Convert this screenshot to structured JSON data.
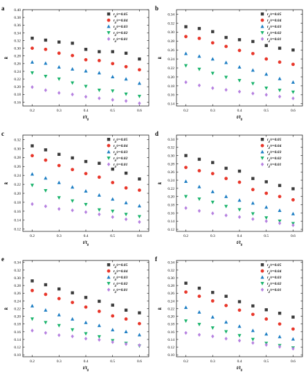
{
  "x_label_base": "t/t",
  "x_label_sub": "0",
  "y_label": "k",
  "colors": {
    "0.05": "#3a3a3a",
    "0.04": "#e8362a",
    "0.03": "#1f7fc4",
    "0.02": "#19b36b",
    "0.01": "#b681e0"
  },
  "markers": {
    "0.05": "square",
    "0.04": "circle",
    "0.03": "triangle-up",
    "0.02": "triangle-down",
    "0.01": "diamond"
  },
  "chart_data": [
    {
      "type": "scatter",
      "panel": "a",
      "x": [
        0.2,
        0.25,
        0.3,
        0.35,
        0.4,
        0.45,
        0.5,
        0.55,
        0.6
      ],
      "xticks": [
        0.2,
        0.3,
        0.4,
        0.5,
        0.6
      ],
      "ylim": [
        0.15,
        0.4
      ],
      "yticks": [
        0.16,
        0.18,
        0.2,
        0.22,
        0.24,
        0.26,
        0.28,
        0.3,
        0.32,
        0.34,
        0.36,
        0.38,
        0.4
      ],
      "xlabel": "t/t0",
      "ylabel": "k",
      "legend_position": "top-right",
      "series": [
        {
          "name": "t_d/r=0.05",
          "key": "0.05",
          "values": [
            0.326,
            0.321,
            0.316,
            0.313,
            0.297,
            0.291,
            0.291,
            0.287,
            0.272
          ]
        },
        {
          "name": "t_d/r=0.04",
          "key": "0.04",
          "values": [
            0.3,
            0.297,
            0.287,
            0.281,
            0.27,
            0.268,
            0.26,
            0.252,
            0.244
          ]
        },
        {
          "name": "t_d/r=0.03",
          "key": "0.03",
          "values": [
            0.264,
            0.261,
            0.251,
            0.246,
            0.241,
            0.236,
            0.226,
            0.22,
            0.209
          ]
        },
        {
          "name": "t_d/r=0.02",
          "key": "0.02",
          "values": [
            0.236,
            0.227,
            0.22,
            0.21,
            0.201,
            0.191,
            0.189,
            0.181,
            0.175
          ]
        },
        {
          "name": "t_d/r=0.01",
          "key": "0.01",
          "values": [
            0.199,
            0.191,
            0.184,
            0.18,
            0.174,
            0.17,
            0.166,
            0.163,
            0.157
          ]
        }
      ]
    },
    {
      "type": "scatter",
      "panel": "b",
      "x": [
        0.2,
        0.25,
        0.3,
        0.35,
        0.4,
        0.45,
        0.5,
        0.55,
        0.6
      ],
      "xticks": [
        0.2,
        0.3,
        0.4,
        0.5,
        0.6
      ],
      "ylim": [
        0.135,
        0.35
      ],
      "yticks": [
        0.14,
        0.16,
        0.18,
        0.2,
        0.22,
        0.24,
        0.26,
        0.28,
        0.3,
        0.32,
        0.34
      ],
      "xlabel": "t/t0",
      "ylabel": "k",
      "legend_position": "top-right",
      "series": [
        {
          "name": "t_d/r=0.05",
          "key": "0.05",
          "values": [
            0.312,
            0.308,
            0.301,
            0.288,
            0.283,
            0.279,
            0.27,
            0.264,
            0.26
          ]
        },
        {
          "name": "t_d/r=0.04",
          "key": "0.04",
          "values": [
            0.29,
            0.286,
            0.276,
            0.268,
            0.259,
            0.252,
            0.24,
            0.233,
            0.228
          ]
        },
        {
          "name": "t_d/r=0.03",
          "key": "0.03",
          "values": [
            0.252,
            0.246,
            0.24,
            0.232,
            0.222,
            0.215,
            0.206,
            0.196,
            0.188
          ]
        },
        {
          "name": "t_d/r=0.02",
          "key": "0.02",
          "values": [
            0.225,
            0.217,
            0.208,
            0.199,
            0.192,
            0.185,
            0.175,
            0.17,
            0.166
          ]
        },
        {
          "name": "t_d/r=0.01",
          "key": "0.01",
          "values": [
            0.188,
            0.181,
            0.175,
            0.171,
            0.167,
            0.163,
            0.16,
            0.156,
            0.152
          ]
        }
      ]
    },
    {
      "type": "scatter",
      "panel": "c",
      "x": [
        0.2,
        0.25,
        0.3,
        0.35,
        0.4,
        0.45,
        0.5,
        0.55,
        0.6
      ],
      "xticks": [
        0.2,
        0.3,
        0.4,
        0.5,
        0.6
      ],
      "ylim": [
        0.115,
        0.33
      ],
      "yticks": [
        0.12,
        0.14,
        0.16,
        0.18,
        0.2,
        0.22,
        0.24,
        0.26,
        0.28,
        0.3,
        0.32
      ],
      "xlabel": "t/t0",
      "ylabel": "k",
      "legend_position": "top-right",
      "series": [
        {
          "name": "t_d/r=0.05",
          "key": "0.05",
          "values": [
            0.306,
            0.297,
            0.287,
            0.279,
            0.271,
            0.267,
            0.254,
            0.245,
            0.232
          ]
        },
        {
          "name": "t_d/r=0.04",
          "key": "0.04",
          "values": [
            0.284,
            0.274,
            0.262,
            0.253,
            0.244,
            0.236,
            0.224,
            0.212,
            0.207
          ]
        },
        {
          "name": "t_d/r=0.03",
          "key": "0.03",
          "values": [
            0.243,
            0.234,
            0.224,
            0.214,
            0.205,
            0.196,
            0.187,
            0.179,
            0.172
          ]
        },
        {
          "name": "t_d/r=0.02",
          "key": "0.02",
          "values": [
            0.218,
            0.206,
            0.19,
            0.183,
            0.175,
            0.163,
            0.16,
            0.153,
            0.148
          ]
        },
        {
          "name": "t_d/r=0.01",
          "key": "0.01",
          "values": [
            0.176,
            0.171,
            0.165,
            0.162,
            0.158,
            0.153,
            0.147,
            0.142,
            0.136
          ]
        }
      ]
    },
    {
      "type": "scatter",
      "panel": "d",
      "x": [
        0.2,
        0.25,
        0.3,
        0.35,
        0.4,
        0.45,
        0.5,
        0.55,
        0.6
      ],
      "xticks": [
        0.2,
        0.3,
        0.4,
        0.5,
        0.6
      ],
      "ylim": [
        0.115,
        0.35
      ],
      "yticks": [
        0.12,
        0.14,
        0.16,
        0.18,
        0.2,
        0.22,
        0.24,
        0.26,
        0.28,
        0.3,
        0.32,
        0.34
      ],
      "xlabel": "t/t0",
      "ylabel": "k",
      "legend_position": "top-right",
      "series": [
        {
          "name": "t_d/r=0.05",
          "key": "0.05",
          "values": [
            0.3,
            0.291,
            0.283,
            0.269,
            0.262,
            0.244,
            0.236,
            0.227,
            0.219
          ]
        },
        {
          "name": "t_d/r=0.04",
          "key": "0.04",
          "values": [
            0.271,
            0.263,
            0.256,
            0.244,
            0.235,
            0.217,
            0.208,
            0.2,
            0.192
          ]
        },
        {
          "name": "t_d/r=0.03",
          "key": "0.03",
          "values": [
            0.237,
            0.224,
            0.212,
            0.2,
            0.191,
            0.184,
            0.174,
            0.166,
            0.158
          ]
        },
        {
          "name": "t_d/r=0.02",
          "key": "0.02",
          "values": [
            0.2,
            0.194,
            0.186,
            0.176,
            0.168,
            0.158,
            0.148,
            0.14,
            0.134
          ]
        },
        {
          "name": "t_d/r=0.01",
          "key": "0.01",
          "values": [
            0.172,
            0.165,
            0.159,
            0.154,
            0.15,
            0.145,
            0.14,
            0.135,
            0.13
          ]
        }
      ]
    },
    {
      "type": "scatter",
      "panel": "e",
      "x": [
        0.2,
        0.25,
        0.3,
        0.35,
        0.4,
        0.45,
        0.5,
        0.55,
        0.6
      ],
      "xticks": [
        0.2,
        0.3,
        0.4,
        0.5,
        0.6
      ],
      "ylim": [
        0.095,
        0.345
      ],
      "yticks": [
        0.1,
        0.12,
        0.14,
        0.16,
        0.18,
        0.2,
        0.22,
        0.24,
        0.26,
        0.28,
        0.3,
        0.32,
        0.34
      ],
      "xlabel": "t/t0",
      "ylabel": "k",
      "legend_position": "top-right",
      "series": [
        {
          "name": "t_d/r=0.05",
          "key": "0.05",
          "values": [
            0.292,
            0.282,
            0.271,
            0.261,
            0.249,
            0.239,
            0.229,
            0.216,
            0.209
          ]
        },
        {
          "name": "t_d/r=0.04",
          "key": "0.04",
          "values": [
            0.267,
            0.257,
            0.246,
            0.236,
            0.224,
            0.213,
            0.201,
            0.193,
            0.181
          ]
        },
        {
          "name": "t_d/r=0.03",
          "key": "0.03",
          "values": [
            0.227,
            0.216,
            0.204,
            0.193,
            0.184,
            0.176,
            0.165,
            0.16,
            0.152
          ]
        },
        {
          "name": "t_d/r=0.02",
          "key": "0.02",
          "values": [
            0.193,
            0.184,
            0.176,
            0.165,
            0.155,
            0.147,
            0.137,
            0.13,
            0.123
          ]
        },
        {
          "name": "t_d/r=0.01",
          "key": "0.01",
          "values": [
            0.163,
            0.157,
            0.151,
            0.148,
            0.142,
            0.139,
            0.133,
            0.128,
            0.125
          ]
        }
      ]
    },
    {
      "type": "scatter",
      "panel": "f",
      "x": [
        0.2,
        0.25,
        0.3,
        0.35,
        0.4,
        0.45,
        0.5,
        0.55,
        0.6
      ],
      "xticks": [
        0.2,
        0.3,
        0.4,
        0.5,
        0.6
      ],
      "ylim": [
        0.095,
        0.345
      ],
      "yticks": [
        0.1,
        0.12,
        0.14,
        0.16,
        0.18,
        0.2,
        0.22,
        0.24,
        0.26,
        0.28,
        0.3,
        0.32,
        0.34
      ],
      "xlabel": "t/t0",
      "ylabel": "k",
      "legend_position": "top-right",
      "series": [
        {
          "name": "t_d/r=0.05",
          "key": "0.05",
          "values": [
            0.286,
            0.273,
            0.262,
            0.252,
            0.238,
            0.227,
            0.217,
            0.208,
            0.198
          ]
        },
        {
          "name": "t_d/r=0.04",
          "key": "0.04",
          "values": [
            0.263,
            0.252,
            0.24,
            0.228,
            0.216,
            0.205,
            0.193,
            0.18,
            0.167
          ]
        },
        {
          "name": "t_d/r=0.03",
          "key": "0.03",
          "values": [
            0.223,
            0.211,
            0.198,
            0.185,
            0.174,
            0.163,
            0.154,
            0.147,
            0.141
          ]
        },
        {
          "name": "t_d/r=0.02",
          "key": "0.02",
          "values": [
            0.188,
            0.179,
            0.17,
            0.16,
            0.15,
            0.14,
            0.13,
            0.124,
            0.118
          ]
        },
        {
          "name": "t_d/r=0.01",
          "key": "0.01",
          "values": [
            0.157,
            0.152,
            0.148,
            0.142,
            0.137,
            0.131,
            0.126,
            0.121,
            0.116
          ]
        }
      ]
    }
  ]
}
